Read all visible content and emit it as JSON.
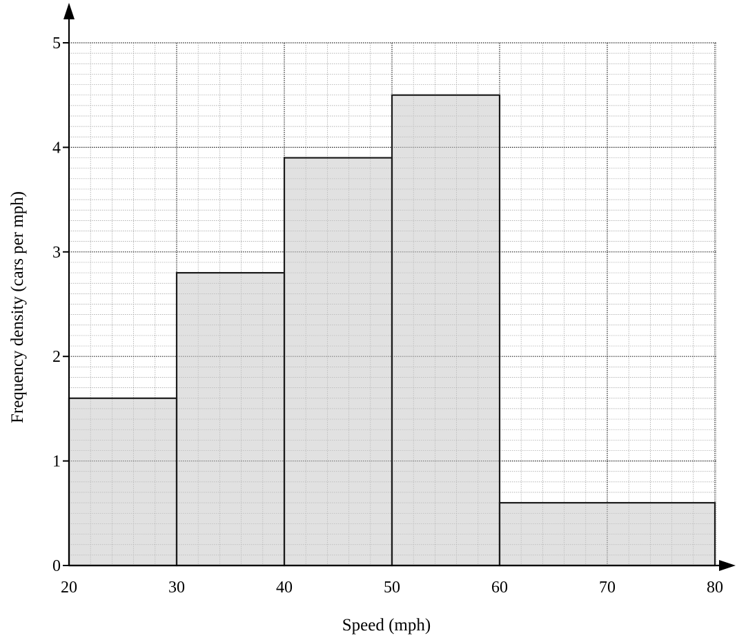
{
  "chart_data": {
    "type": "histogram",
    "title": "",
    "xlabel": "Speed (mph)",
    "ylabel": "Frequency density (cars per mph)",
    "xlim": [
      20,
      80
    ],
    "ylim": [
      0,
      5
    ],
    "x_ticks": [
      "20",
      "30",
      "40",
      "50",
      "60",
      "70",
      "80"
    ],
    "y_ticks": [
      "0",
      "1",
      "2",
      "3",
      "4",
      "5"
    ],
    "grid": true,
    "bins": [
      {
        "x_start": 20,
        "x_end": 30,
        "value": 1.6
      },
      {
        "x_start": 30,
        "x_end": 40,
        "value": 2.8
      },
      {
        "x_start": 40,
        "x_end": 50,
        "value": 3.9
      },
      {
        "x_start": 50,
        "x_end": 60,
        "value": 4.5
      },
      {
        "x_start": 60,
        "x_end": 80,
        "value": 0.6
      }
    ],
    "colors": {
      "bar_fill": "#d9d9d9",
      "bar_stroke": "#1a1a1a"
    }
  }
}
